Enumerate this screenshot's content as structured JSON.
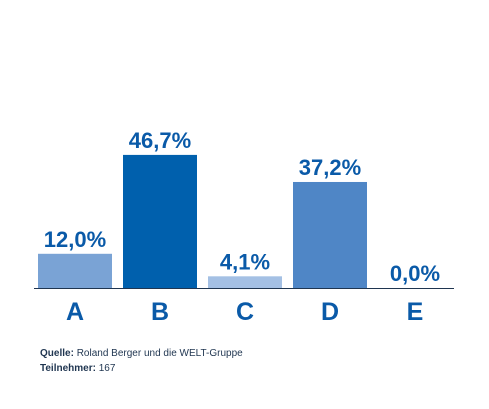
{
  "chart_data": {
    "type": "bar",
    "categories": [
      "A",
      "B",
      "C",
      "D",
      "E"
    ],
    "values": [
      12.0,
      46.7,
      4.1,
      37.2,
      0.0
    ],
    "value_labels": [
      "12,0%",
      "46,7%",
      "4,1%",
      "37,2%",
      "0,0%"
    ],
    "ylim": [
      0,
      50
    ],
    "grid": false,
    "title": "",
    "xlabel": "",
    "ylabel": ""
  },
  "colors": {
    "bars": [
      "#7aa3d5",
      "#0060ad",
      "#a4c0e4",
      "#4f86c6",
      "#4f86c6"
    ],
    "label_text": "#0a5aa8",
    "axis": "#1f3550"
  },
  "footer": {
    "source_label": "Quelle:",
    "source_text": "Roland Berger und die WELT-Gruppe",
    "participants_label": "Teilnehmer:",
    "participants_text": "167"
  }
}
